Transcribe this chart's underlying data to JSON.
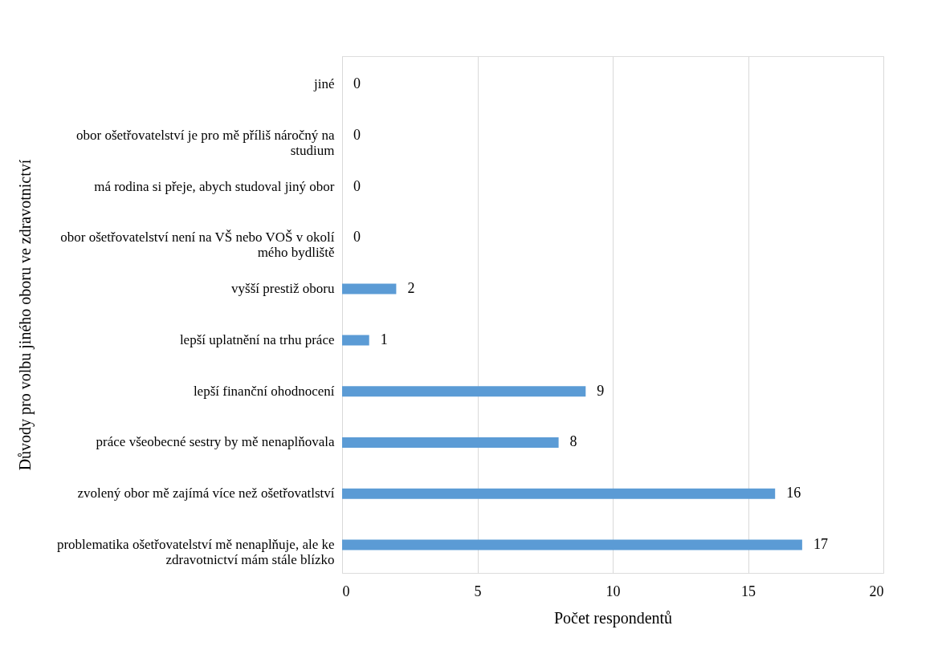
{
  "chart_data": {
    "type": "bar",
    "orientation": "horizontal",
    "xlabel": "Počet respondentů",
    "ylabel": "Důvody  pro volbu jiného oboru ve zdravotnictví",
    "categories": [
      "jiné",
      "obor ošetřovatelství je pro mě příliš náročný na studium",
      "má rodina si přeje, abych studoval jiný obor",
      "obor ošetřovatelství není na VŠ nebo VOŠ v okolí mého bydliště",
      "vyšší prestiž oboru",
      "lepší uplatnění na trhu práce",
      "lepší finanční ohodnocení",
      "práce všeobecné sestry by mě nenaplňovala",
      "zvolený obor mě zajímá více než ošetřovatlství",
      "problematika ošetřovatelství mě nenaplňuje, ale ke zdravotnictví mám stále blízko"
    ],
    "values": [
      0,
      0,
      0,
      0,
      2,
      1,
      9,
      8,
      16,
      17
    ],
    "color": "#5b9bd5",
    "xlim": [
      0,
      20
    ],
    "xticks": [
      0,
      5,
      10,
      15,
      20
    ],
    "grid": "x",
    "data_labels": true,
    "legend": false
  }
}
